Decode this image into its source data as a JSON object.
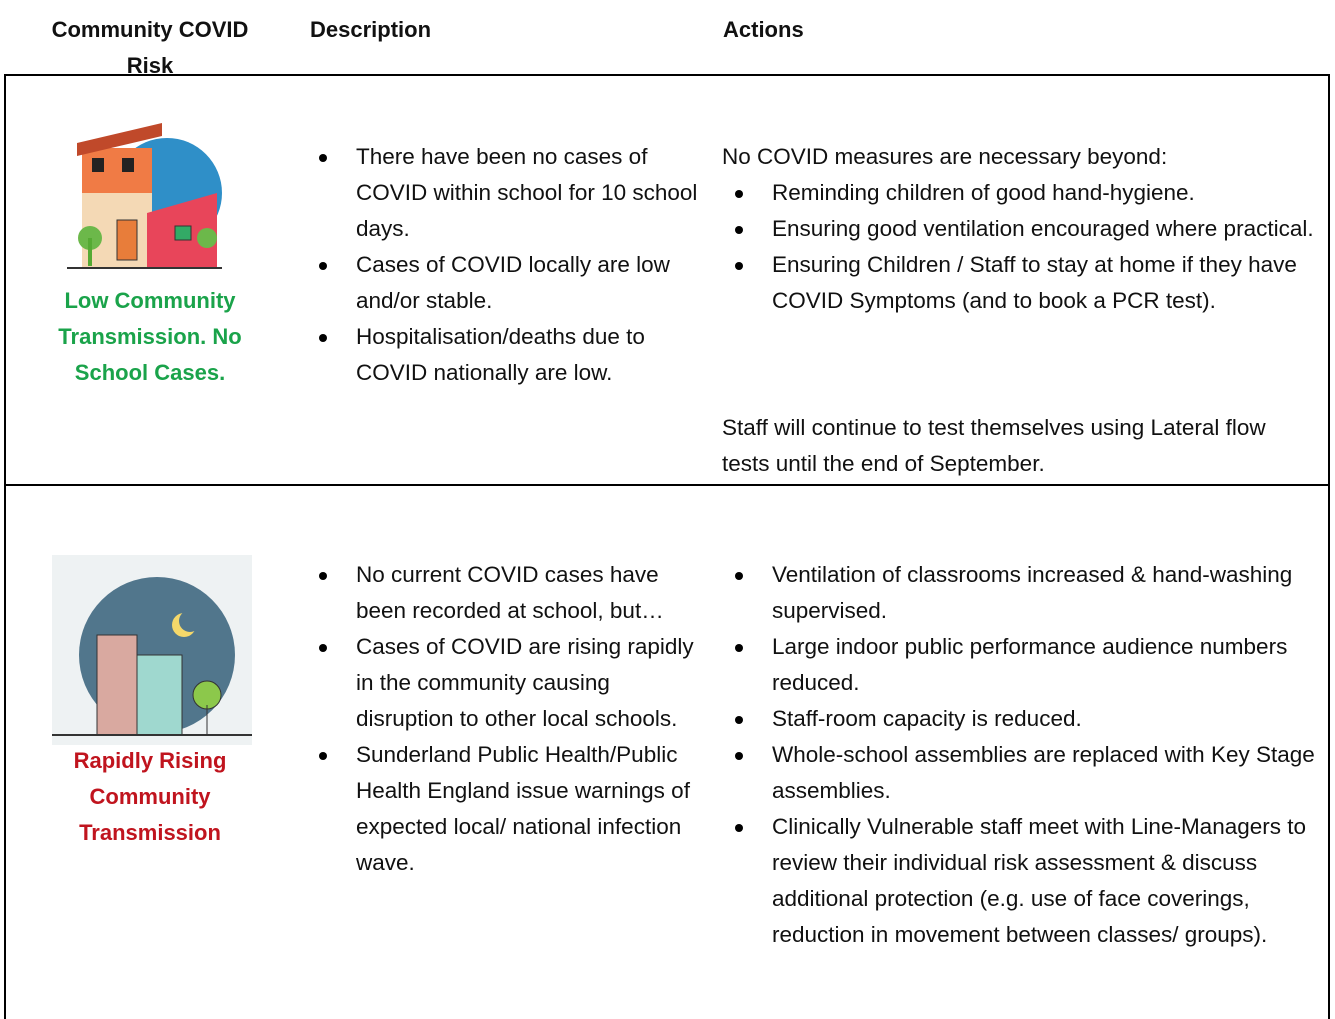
{
  "header": {
    "columns": [
      "Community COVID Risk",
      "Description",
      "Actions"
    ]
  },
  "rows": [
    {
      "risk_label": "Low Community Transmission. No School Cases.",
      "description": [
        "There have been no cases of COVID within school for 10 school days.",
        "Cases of COVID locally are low and/or stable.",
        "Hospitalisation/deaths due to COVID nationally are low."
      ],
      "actions_intro": "No COVID measures are necessary beyond:",
      "actions": [
        "Reminding children of good hand-hygiene.",
        "Ensuring good ventilation encouraged where practical.",
        "Ensuring Children / Staff to stay at home if they have COVID Symptoms (and to book a PCR test)."
      ],
      "actions_note": "Staff will continue to test themselves using Lateral flow tests until the end of September."
    },
    {
      "risk_label": "Rapidly Rising Community Transmission",
      "description": [
        "No current COVID cases have been recorded at school, but…",
        "Cases of COVID are rising rapidly in the community causing disruption to other local schools.",
        "Sunderland Public Health/Public Health England issue warnings of expected local/ national infection wave."
      ],
      "actions": [
        "Ventilation of classrooms increased & hand-washing supervised.",
        "Large indoor public performance audience numbers reduced.",
        "Staff-room capacity is reduced.",
        "Whole-school assemblies are replaced with Key Stage assemblies.",
        "Clinically Vulnerable staff meet with Line-Managers to review their individual risk assessment & discuss additional protection (e.g. use of face coverings, reduction in movement between classes/ groups)."
      ]
    }
  ]
}
